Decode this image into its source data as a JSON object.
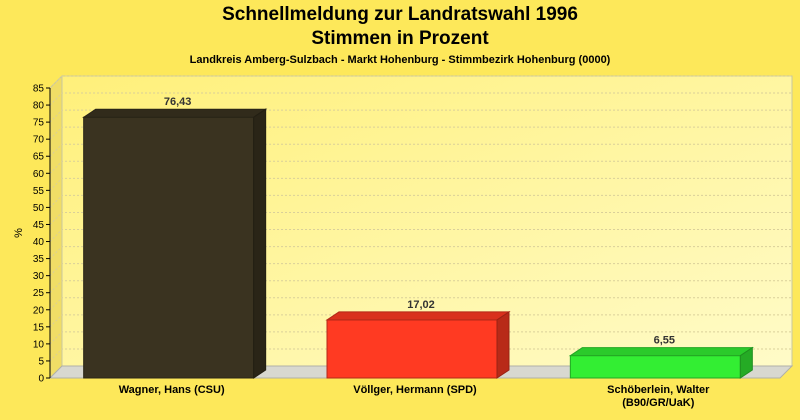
{
  "chart_data": {
    "type": "bar",
    "title": "Schnellmeldung zur Landratswahl 1996",
    "subtitle": "Stimmen in Prozent",
    "caption": "Landkreis Amberg-Sulzbach - Markt Hohenburg - Stimmbezirk Hohenburg (0000)",
    "ylabel": "%",
    "ylim": [
      0,
      85
    ],
    "yticks": [
      0,
      5,
      10,
      15,
      20,
      25,
      30,
      35,
      40,
      45,
      50,
      55,
      60,
      65,
      70,
      75,
      80,
      85
    ],
    "categories": [
      [
        "Wagner, Hans (CSU)"
      ],
      [
        "Völlger, Hermann (SPD)"
      ],
      [
        "Schöberlein, Walter",
        "(B90/GR/UaK)"
      ]
    ],
    "values": [
      76.43,
      17.02,
      6.55
    ],
    "value_labels": [
      "76,43",
      "17,02",
      "6,55"
    ],
    "colors": [
      "#3a3320",
      "#ff3a22",
      "#33ee33"
    ],
    "grid": true
  }
}
